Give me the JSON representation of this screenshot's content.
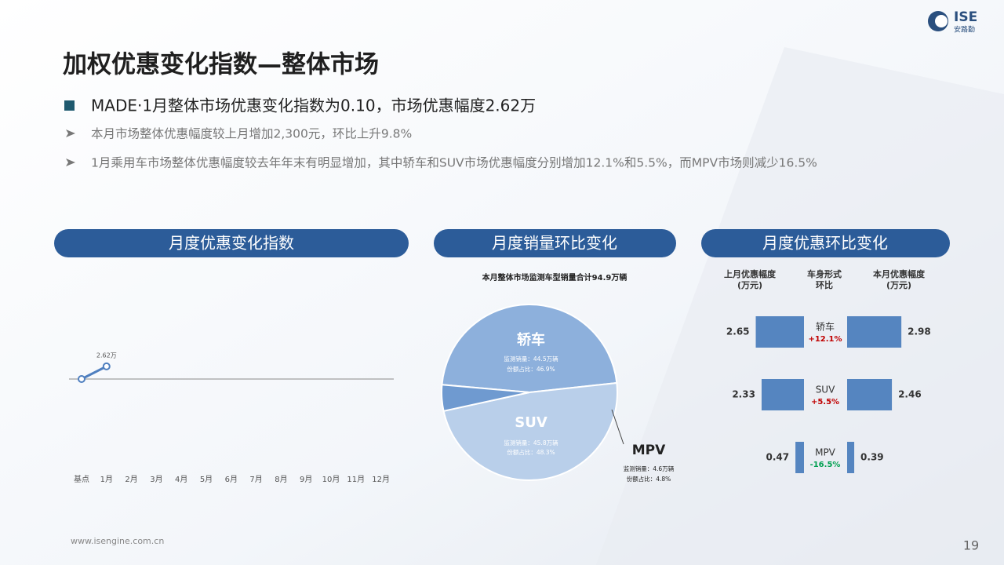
{
  "header": {
    "title": "加权优惠变化指数—整体市场",
    "headline": "MADE·1月整体市场优惠变化指数为0.10，市场优惠幅度2.62万",
    "bullets": [
      "本月市场整体优惠幅度较上月增加2,300元，环比上升9.8%",
      "1月乘用车市场整体优惠幅度较去年年末有明显增加，其中轿车和SUV市场优惠幅度分别增加12.1%和5.5%，而MPV市场则减少16.5%"
    ]
  },
  "logo": {
    "brand": "ISE",
    "name": "安路勤"
  },
  "footer": {
    "url": "www.isengine.com.cn",
    "page": "19"
  },
  "chart_data": [
    {
      "type": "line",
      "title": "月度优惠变化指数",
      "categories": [
        "基点",
        "1月",
        "2月",
        "3月",
        "4月",
        "5月",
        "6月",
        "7月",
        "8月",
        "9月",
        "10月",
        "11月",
        "12月"
      ],
      "values": [
        2.39,
        2.62,
        null,
        null,
        null,
        null,
        null,
        null,
        null,
        null,
        null,
        null,
        null
      ],
      "value_labels": [
        null,
        "2.62万",
        null,
        null,
        null,
        null,
        null,
        null,
        null,
        null,
        null,
        null,
        null
      ],
      "color": "#4f7fbf"
    },
    {
      "type": "pie",
      "title": "月度销量环比变化",
      "subtitle": "本月整体市场监测车型销量合计94.9万辆",
      "categories": [
        "轿车",
        "SUV",
        "MPV"
      ],
      "values": [
        46.9,
        48.3,
        4.8
      ],
      "value_labels": [
        "46.9%",
        "48.3%",
        "4.8%"
      ],
      "volumes": [
        44.5,
        45.8,
        4.6
      ],
      "volume_labels": [
        "44.5万辆",
        "45.8万辆",
        "4.6万辆"
      ],
      "volume_prefix": "监测销量：",
      "share_prefix": "份额占比：",
      "colors": [
        "#8db0dc",
        "#b9cfea",
        "#6f9ad0"
      ]
    },
    {
      "type": "diverging_bar",
      "title": "月度优惠环比变化",
      "column_headers": [
        [
          "上月优惠幅度",
          "(万元)"
        ],
        [
          "车身形式",
          "环比"
        ],
        [
          "本月优惠幅度",
          "(万元)"
        ]
      ],
      "categories": [
        "轿车",
        "SUV",
        "MPV"
      ],
      "series": [
        {
          "name": "上月优惠幅度(万元)",
          "color": "#5585c0",
          "values": [
            2.65,
            2.33,
            0.47
          ]
        },
        {
          "name": "本月优惠幅度(万元)",
          "color": "#5585c0",
          "values": [
            2.98,
            2.46,
            0.39
          ]
        }
      ],
      "changes": [
        12.1,
        5.5,
        -16.5
      ],
      "change_labels": [
        "+12.1%",
        "+5.5%",
        "-16.5%"
      ],
      "positive_color": "#c00000",
      "negative_color": "#00a050"
    }
  ]
}
